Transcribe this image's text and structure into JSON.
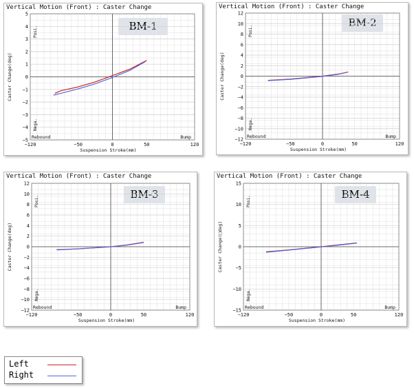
{
  "legend": {
    "left_label": "Left",
    "right_label": "Right",
    "left_color": "#cc2222",
    "right_color": "#5566dd"
  },
  "chart_data": [
    {
      "type": "line",
      "panel_label": "BM-1",
      "title": "Vertical Motion (Front) : Caster Change",
      "xlabel": "Suspension Stroke(mm)",
      "ylabel": "Caster Change(deg)",
      "xlim": [
        -120,
        120
      ],
      "ylim": [
        -5,
        5
      ],
      "xticks": [
        -120,
        -50,
        0,
        50,
        120
      ],
      "yticks": [
        -5,
        -4,
        -3,
        -2,
        -1,
        0,
        1,
        2,
        3,
        4,
        5
      ],
      "posi_label": "Posi.",
      "nega_label": "Nega.",
      "rebound_label": "Rebound",
      "bump_label": "Bump",
      "grid": true,
      "series": [
        {
          "name": "Left",
          "color": "#cc2222",
          "x": [
            -84,
            -75,
            -50,
            -25,
            0,
            25,
            50
          ],
          "y": [
            -1.3,
            -1.1,
            -0.8,
            -0.4,
            0.1,
            0.6,
            1.3
          ]
        },
        {
          "name": "Right",
          "color": "#5566dd",
          "x": [
            -86,
            -75,
            -50,
            -25,
            0,
            25,
            48
          ],
          "y": [
            -1.45,
            -1.3,
            -0.95,
            -0.55,
            -0.05,
            0.5,
            1.2
          ]
        }
      ]
    },
    {
      "type": "line",
      "panel_label": "BM-2",
      "title": "Vertical Motion (Front) : Caster Change",
      "xlabel": "Suspension Stroke(mm)",
      "ylabel": "Caster Change(deg)",
      "xlim": [
        -120,
        120
      ],
      "ylim": [
        -12,
        12
      ],
      "xticks": [
        -120,
        -50,
        0,
        50,
        120
      ],
      "yticks": [
        -12,
        -10,
        -8,
        -6,
        -4,
        -2,
        0,
        2,
        4,
        6,
        8,
        10,
        12
      ],
      "posi_label": "Posi.",
      "nega_label": "Nega.",
      "rebound_label": "Rebound",
      "bump_label": "Bump",
      "grid": true,
      "series": [
        {
          "name": "Left",
          "color": "#cc2222",
          "x": [
            -85,
            -50,
            0,
            25,
            40
          ],
          "y": [
            -0.8,
            -0.55,
            0.0,
            0.4,
            0.8
          ]
        },
        {
          "name": "Right",
          "color": "#5566dd",
          "x": [
            -85,
            -50,
            0,
            25,
            37
          ],
          "y": [
            -0.85,
            -0.6,
            -0.05,
            0.35,
            0.7
          ]
        }
      ]
    },
    {
      "type": "line",
      "panel_label": "BM-3",
      "title": "Vertical Motion (Front) : Caster Change",
      "xlabel": "Suspension Stroke(mm)",
      "ylabel": "Caster Change(deg)",
      "xlim": [
        -120,
        120
      ],
      "ylim": [
        -12,
        12
      ],
      "xticks": [
        -120,
        -50,
        0,
        50,
        120
      ],
      "yticks": [
        -12,
        -10,
        -8,
        -6,
        -4,
        -2,
        0,
        2,
        4,
        6,
        8,
        10,
        12
      ],
      "posi_label": "Posi.",
      "nega_label": "Nega.",
      "rebound_label": "Rebound",
      "bump_label": "Bump",
      "grid": true,
      "series": [
        {
          "name": "Left",
          "color": "#cc2222",
          "x": [
            -82,
            -50,
            0,
            25,
            50
          ],
          "y": [
            -0.55,
            -0.4,
            0.0,
            0.35,
            0.85
          ]
        },
        {
          "name": "Right",
          "color": "#5566dd",
          "x": [
            -82,
            -50,
            0,
            25,
            50
          ],
          "y": [
            -0.6,
            -0.42,
            -0.02,
            0.3,
            0.8
          ]
        }
      ]
    },
    {
      "type": "line",
      "panel_label": "BM-4",
      "title": "Vertical Motion (Front) : Caster Change",
      "xlabel": "Suspension Stroke(mm)",
      "ylabel": "Caster Change(□deg)",
      "xlim": [
        -120,
        120
      ],
      "ylim": [
        -15,
        15
      ],
      "xticks": [
        -120,
        -50,
        0,
        50,
        120
      ],
      "yticks": [
        -15,
        -10,
        -5,
        0,
        5,
        10,
        15
      ],
      "posi_label": "Posi.",
      "nega_label": "Nega.",
      "rebound_label": "Rebound",
      "bump_label": "Bump",
      "grid": true,
      "series": [
        {
          "name": "Left",
          "color": "#cc2222",
          "x": [
            -85,
            -50,
            0,
            25,
            55
          ],
          "y": [
            -1.2,
            -0.75,
            0.0,
            0.4,
            0.9
          ]
        },
        {
          "name": "Right",
          "color": "#5566dd",
          "x": [
            -85,
            -50,
            0,
            25,
            55
          ],
          "y": [
            -1.3,
            -0.8,
            -0.05,
            0.35,
            0.85
          ]
        }
      ]
    }
  ]
}
